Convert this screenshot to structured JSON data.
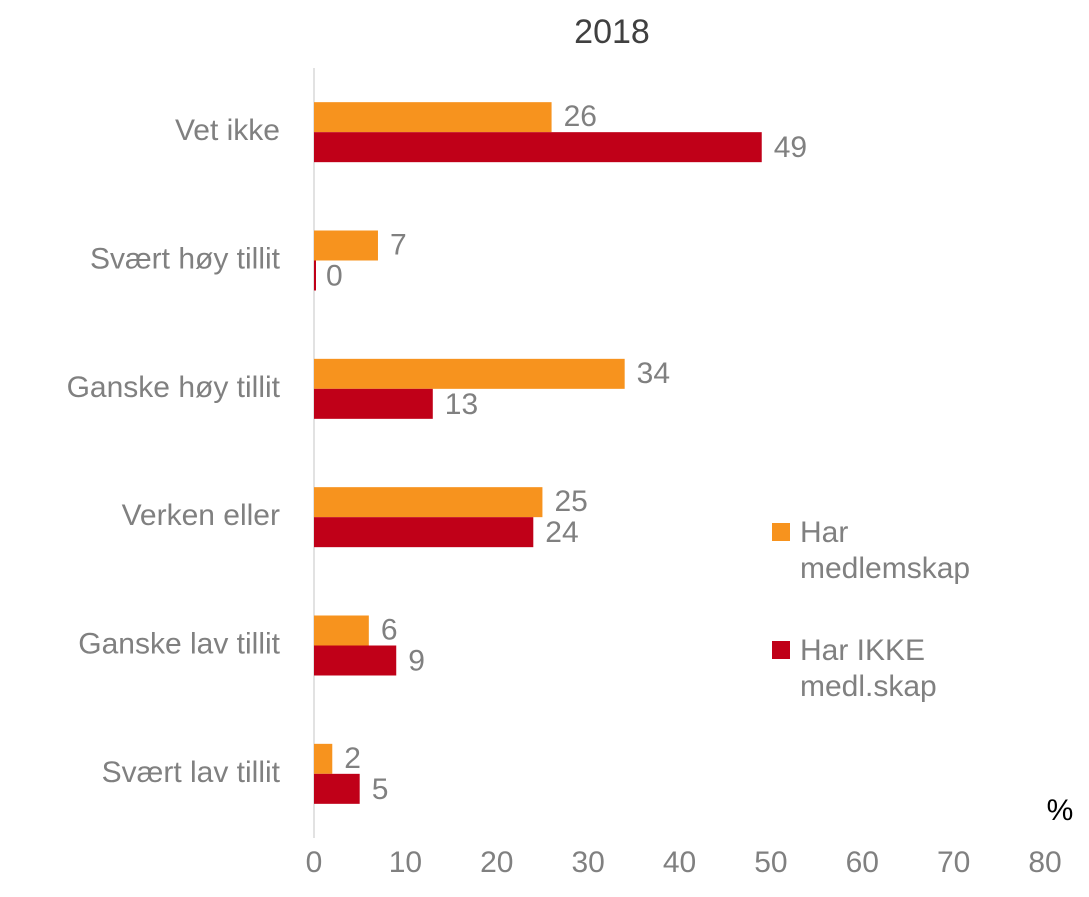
{
  "chart_data": {
    "type": "hbar",
    "title": "2018",
    "xlabel": "%",
    "categories": [
      "Vet ikke",
      "Svært høy tillit",
      "Ganske høy tillit",
      "Verken eller",
      "Ganske lav tillit",
      "Svært lav tillit"
    ],
    "series": [
      {
        "name": "Har medlemskap",
        "color": "#f7931e",
        "values": [
          26,
          7,
          34,
          25,
          6,
          2
        ]
      },
      {
        "name": "Har IKKE medl.skap",
        "color": "#c00018",
        "values": [
          49,
          0,
          13,
          24,
          9,
          5
        ]
      }
    ],
    "xlim": [
      0,
      80
    ],
    "xticks": [
      0,
      10,
      20,
      30,
      40,
      50,
      60,
      70,
      80
    ],
    "legend": "right"
  }
}
